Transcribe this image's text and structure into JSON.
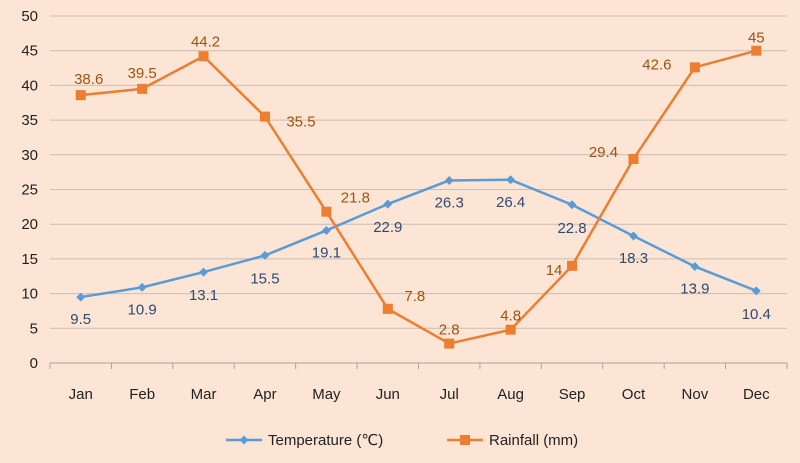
{
  "chart_data": {
    "type": "line",
    "title": "",
    "xlabel": "",
    "ylabel": "",
    "categories": [
      "Jan",
      "Feb",
      "Mar",
      "Apr",
      "May",
      "Jun",
      "Jul",
      "Aug",
      "Sep",
      "Oct",
      "Nov",
      "Dec"
    ],
    "ylim": [
      0,
      50
    ],
    "yticks": [
      0,
      5,
      10,
      15,
      20,
      25,
      30,
      35,
      40,
      45,
      50
    ],
    "grid": true,
    "legend_position": "bottom",
    "background_color": "#FCE5D5",
    "series": [
      {
        "name": "Temperature (℃)",
        "color": "#5B9BD5",
        "label_color": "#2E4A70",
        "marker": "diamond",
        "values": [
          9.5,
          10.9,
          13.1,
          15.5,
          19.1,
          22.9,
          26.3,
          26.4,
          22.8,
          18.3,
          13.9,
          10.4
        ],
        "labels": [
          "9.5",
          "10.9",
          "13.1",
          "15.5",
          "19.1",
          "22.9",
          "26.3",
          "26.4",
          "22.8",
          "18.3",
          "13.9",
          "10.4"
        ]
      },
      {
        "name": "Rainfall (mm)",
        "color": "#ED7D31",
        "label_color": "#9C5410",
        "marker": "square",
        "values": [
          38.6,
          39.5,
          44.2,
          35.5,
          21.8,
          7.8,
          2.8,
          4.8,
          14,
          29.4,
          42.6,
          45
        ],
        "labels": [
          "38.6",
          "39.5",
          "44.2",
          "35.5",
          "21.8",
          "7.8",
          "2.8",
          "4.8",
          "14",
          "29.4",
          "42.6",
          "45"
        ]
      }
    ]
  }
}
